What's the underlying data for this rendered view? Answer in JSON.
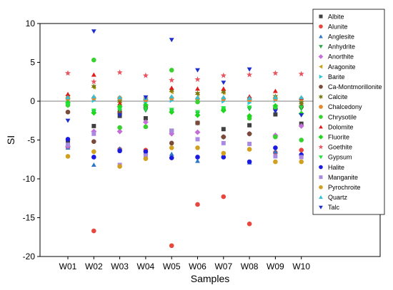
{
  "chart_data": {
    "type": "scatter",
    "title": "",
    "xlabel": "Samples",
    "ylabel": "SI",
    "categories": [
      "W01",
      "W02",
      "W03",
      "W04",
      "W05",
      "W06",
      "W07",
      "W08",
      "W09",
      "W10"
    ],
    "ylim": [
      -20,
      10
    ],
    "yticks": [
      10,
      5,
      0,
      -5,
      -10,
      -15,
      -20
    ],
    "ytick_labels": [
      "10",
      "5",
      "0",
      "-5",
      "-10",
      "-15",
      "-20"
    ],
    "zero_line": true,
    "grid": false,
    "legend_position": "right",
    "series": [
      {
        "name": "Albite",
        "marker": "square",
        "color": "#404040",
        "values": [
          -5.1,
          -3.2,
          -1.9,
          -2.2,
          -3.8,
          -2.8,
          -3.6,
          -3.1,
          -1.7,
          -2.9
        ]
      },
      {
        "name": "Alunite",
        "marker": "circle",
        "color": "#e8473f",
        "values": [
          -5.9,
          -16.7,
          -6.2,
          -6.3,
          -18.6,
          -13.3,
          -12.3,
          -15.8,
          -6.6,
          -6.3
        ]
      },
      {
        "name": "Anglesite",
        "marker": "triangle-up",
        "color": "#2e76c7",
        "values": [
          -6.0,
          -8.2,
          -6.1,
          -6.6,
          -6.8,
          -7.7,
          -7.0,
          -7.9,
          -6.5,
          -6.8
        ]
      },
      {
        "name": "Anhydrite",
        "marker": "triangle-down",
        "color": "#2fa84f",
        "values": [
          -0.6,
          -1.4,
          -1.3,
          -1.2,
          -1.3,
          -1.6,
          -1.1,
          -1.0,
          -1.2,
          -1.0
        ]
      },
      {
        "name": "Anorthite",
        "marker": "diamond",
        "color": "#c46fd8",
        "values": [
          -5.8,
          -3.9,
          -3.9,
          -2.7,
          -4.2,
          -4.0,
          -4.6,
          -4.2,
          -4.4,
          -3.2
        ]
      },
      {
        "name": "Aragonite",
        "marker": "triangle-left",
        "color": "#c9a011",
        "values": [
          0.5,
          1.8,
          -0.1,
          0.2,
          1.2,
          0.9,
          1.1,
          0.2,
          0.5,
          -0.3
        ]
      },
      {
        "name": "Barite",
        "marker": "triangle-right",
        "color": "#29c5d8",
        "values": [
          -0.1,
          0.1,
          0.2,
          -0.1,
          0.1,
          0.0,
          0.0,
          -0.2,
          0.1,
          -0.1
        ]
      },
      {
        "name": "Ca-Montmorillonite",
        "marker": "circle",
        "color": "#7b4b3a",
        "values": [
          -1.4,
          -5.2,
          -1.4,
          -0.8,
          -5.4,
          -2.8,
          -4.6,
          -4.2,
          -0.9,
          -0.7
        ]
      },
      {
        "name": "Calcite",
        "marker": "star6",
        "color": "#7a7a12",
        "values": [
          0.6,
          1.9,
          0.0,
          0.3,
          1.4,
          1.0,
          1.2,
          0.3,
          0.6,
          -0.2
        ]
      },
      {
        "name": "Chalcedony",
        "marker": "hexagon",
        "color": "#e8862a",
        "values": [
          0.3,
          0.4,
          0.4,
          0.2,
          0.4,
          0.3,
          0.3,
          0.2,
          0.3,
          0.3
        ]
      },
      {
        "name": "Chrysotile",
        "marker": "circle",
        "color": "#38d12f",
        "values": [
          -0.5,
          5.3,
          -3.4,
          -3.3,
          4.0,
          -0.1,
          -1.1,
          -2.2,
          -4.6,
          -5.0
        ]
      },
      {
        "name": "Dolomite",
        "marker": "triangle-up",
        "color": "#e01b1b",
        "values": [
          0.9,
          3.4,
          -0.3,
          0.4,
          1.7,
          1.6,
          1.6,
          0.6,
          1.3,
          0.4
        ]
      },
      {
        "name": "Fluorite",
        "marker": "diamond",
        "color": "#1ed61e",
        "values": [
          -0.2,
          -1.5,
          -0.7,
          -0.5,
          -1.4,
          -1.8,
          -1.2,
          -1.9,
          -0.6,
          -1.6
        ]
      },
      {
        "name": "Goethite",
        "marker": "star5",
        "color": "#e85560",
        "values": [
          3.6,
          2.5,
          3.7,
          3.3,
          2.7,
          2.8,
          3.3,
          3.4,
          3.6,
          3.5
        ]
      },
      {
        "name": "Gypsum",
        "marker": "triangle-down",
        "color": "#1fe23a",
        "values": [
          -0.4,
          -1.2,
          -1.1,
          -1.0,
          -1.1,
          -1.4,
          -0.9,
          -0.8,
          -1.0,
          -0.8
        ]
      },
      {
        "name": "Halite",
        "marker": "circle",
        "color": "#1a1ae0",
        "values": [
          -4.9,
          -7.2,
          -6.4,
          -6.5,
          -7.3,
          -7.2,
          -7.2,
          -7.8,
          -6.0,
          -6.9
        ]
      },
      {
        "name": "Manganite",
        "marker": "square",
        "color": "#a98ae0",
        "values": [
          -5.6,
          -4.2,
          -8.2,
          -7.0,
          -3.8,
          -4.9,
          -5.4,
          -5.5,
          -7.1,
          -7.2
        ]
      },
      {
        "name": "Pyrochroite",
        "marker": "circle",
        "color": "#d1a020",
        "values": [
          -7.1,
          -6.5,
          -8.4,
          -7.4,
          -6.0,
          -6.0,
          -6.7,
          -6.2,
          -7.8,
          -7.8
        ]
      },
      {
        "name": "Quartz",
        "marker": "triangle-up",
        "color": "#35c0d8",
        "values": [
          0.5,
          0.6,
          0.5,
          0.4,
          0.6,
          0.5,
          0.5,
          0.4,
          0.5,
          0.5
        ]
      },
      {
        "name": "Talc",
        "marker": "triangle-down",
        "color": "#1e2ecc",
        "values": [
          -2.5,
          9.0,
          -1.8,
          0.5,
          7.9,
          4.0,
          2.4,
          4.1,
          -1.3,
          -1.8
        ]
      }
    ]
  }
}
